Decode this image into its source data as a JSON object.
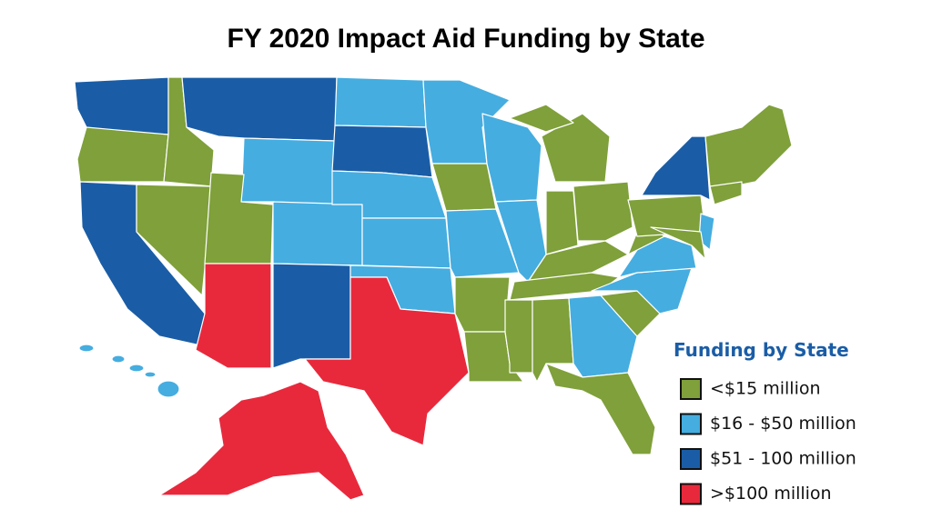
{
  "title": "FY 2020 Impact Aid Funding by State",
  "legend": {
    "title": "Funding by State",
    "items": [
      {
        "label": "<$15 million",
        "color": "#7fa03a"
      },
      {
        "label": "$16 - $50 million",
        "color": "#45ade0"
      },
      {
        "label": "$51 - 100 million",
        "color": "#1a5da6"
      },
      {
        "label": ">$100 million",
        "color": "#e8293c"
      }
    ]
  }
}
